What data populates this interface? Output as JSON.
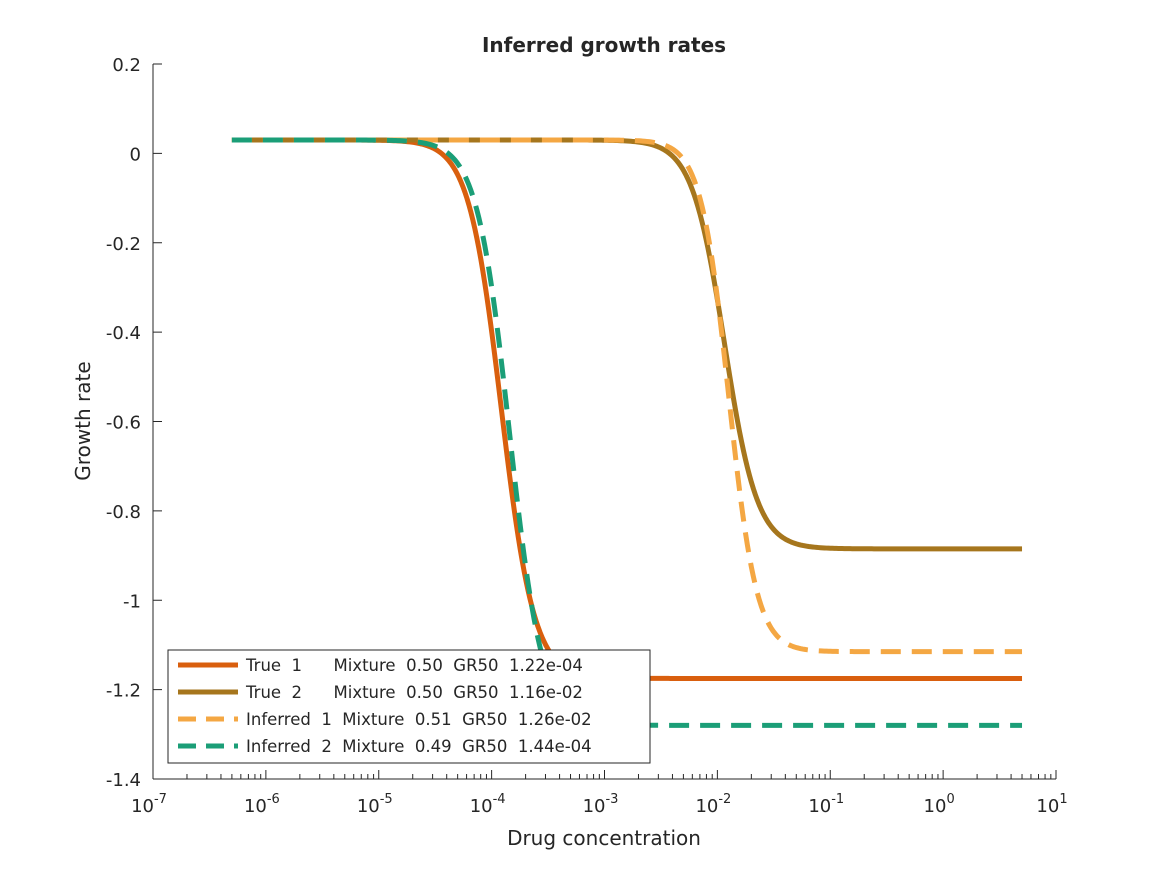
{
  "chart_data": {
    "type": "line",
    "title": "Inferred growth rates",
    "xlabel": "Drug concentration",
    "ylabel": "Growth rate",
    "xscale": "log",
    "xlim": [
      1e-07,
      10
    ],
    "ylim": [
      -1.4,
      0.2
    ],
    "x_ticks": [
      {
        "base": "10",
        "exp": "-7"
      },
      {
        "base": "10",
        "exp": "-6"
      },
      {
        "base": "10",
        "exp": "-5"
      },
      {
        "base": "10",
        "exp": "-4"
      },
      {
        "base": "10",
        "exp": "-3"
      },
      {
        "base": "10",
        "exp": "-2"
      },
      {
        "base": "10",
        "exp": "-1"
      },
      {
        "base": "10",
        "exp": "0"
      },
      {
        "base": "10",
        "exp": "1"
      }
    ],
    "y_ticks": [
      "-1.4",
      "-1.2",
      "-1",
      "-0.8",
      "-0.6",
      "-0.4",
      "-0.2",
      "0",
      "0.2"
    ],
    "grid": false,
    "legend_position": "bottom-left",
    "series": [
      {
        "name": "True  1      Mixture  0.50  GR50  1.22e-04",
        "color": "#D95F0E",
        "dash": "solid",
        "upper": 0.03,
        "lower": -1.175,
        "ec50": 0.000122,
        "hill": 3.0,
        "x": [
          5e-07,
          1e-05,
          3e-05,
          5e-05,
          7e-05,
          0.0001,
          0.00012,
          0.00015,
          0.0002,
          0.0003,
          0.0005,
          0.001,
          5
        ],
        "y": [
          0.03,
          0.029,
          0.01,
          -0.08,
          -0.22,
          -0.45,
          -0.59,
          -0.77,
          -0.96,
          -1.1,
          -1.16,
          -1.173,
          -1.175
        ]
      },
      {
        "name": "True  2      Mixture  0.50  GR50  1.16e-02",
        "color": "#A6761D",
        "dash": "solid",
        "upper": 0.03,
        "lower": -0.885,
        "ec50": 0.0116,
        "hill": 3.0,
        "x": [
          5e-07,
          0.001,
          0.003,
          0.005,
          0.007,
          0.01,
          0.012,
          0.015,
          0.02,
          0.03,
          0.05,
          0.1,
          5
        ],
        "y": [
          0.03,
          0.029,
          0.02,
          -0.04,
          -0.15,
          -0.35,
          -0.45,
          -0.58,
          -0.73,
          -0.84,
          -0.878,
          -0.884,
          -0.885
        ]
      },
      {
        "name": "Inferred  1  Mixture  0.51  GR50  1.26e-02",
        "color": "#F4A743",
        "dash": "dashed",
        "upper": 0.03,
        "lower": -1.115,
        "ec50": 0.0126,
        "hill": 3.5,
        "x": [
          5e-07,
          0.001,
          0.003,
          0.005,
          0.007,
          0.01,
          0.0126,
          0.015,
          0.02,
          0.03,
          0.05,
          0.1,
          5
        ],
        "y": [
          0.03,
          0.029,
          0.02,
          -0.04,
          -0.15,
          -0.35,
          -0.55,
          -0.7,
          -0.88,
          -1.02,
          -1.09,
          -1.11,
          -1.115
        ]
      },
      {
        "name": "Inferred  2  Mixture  0.49  GR50  1.44e-04",
        "color": "#1B9E77",
        "dash": "dashed",
        "upper": 0.03,
        "lower": -1.28,
        "ec50": 0.000144,
        "hill": 3.0,
        "x": [
          5e-07,
          1e-05,
          3e-05,
          5e-05,
          7e-05,
          0.0001,
          0.000144,
          0.0002,
          0.0003,
          0.0005,
          0.001,
          5
        ],
        "y": [
          0.03,
          0.029,
          0.015,
          -0.06,
          -0.18,
          -0.36,
          -0.63,
          -0.9,
          -1.12,
          -1.24,
          -1.27,
          -1.28
        ]
      }
    ]
  }
}
